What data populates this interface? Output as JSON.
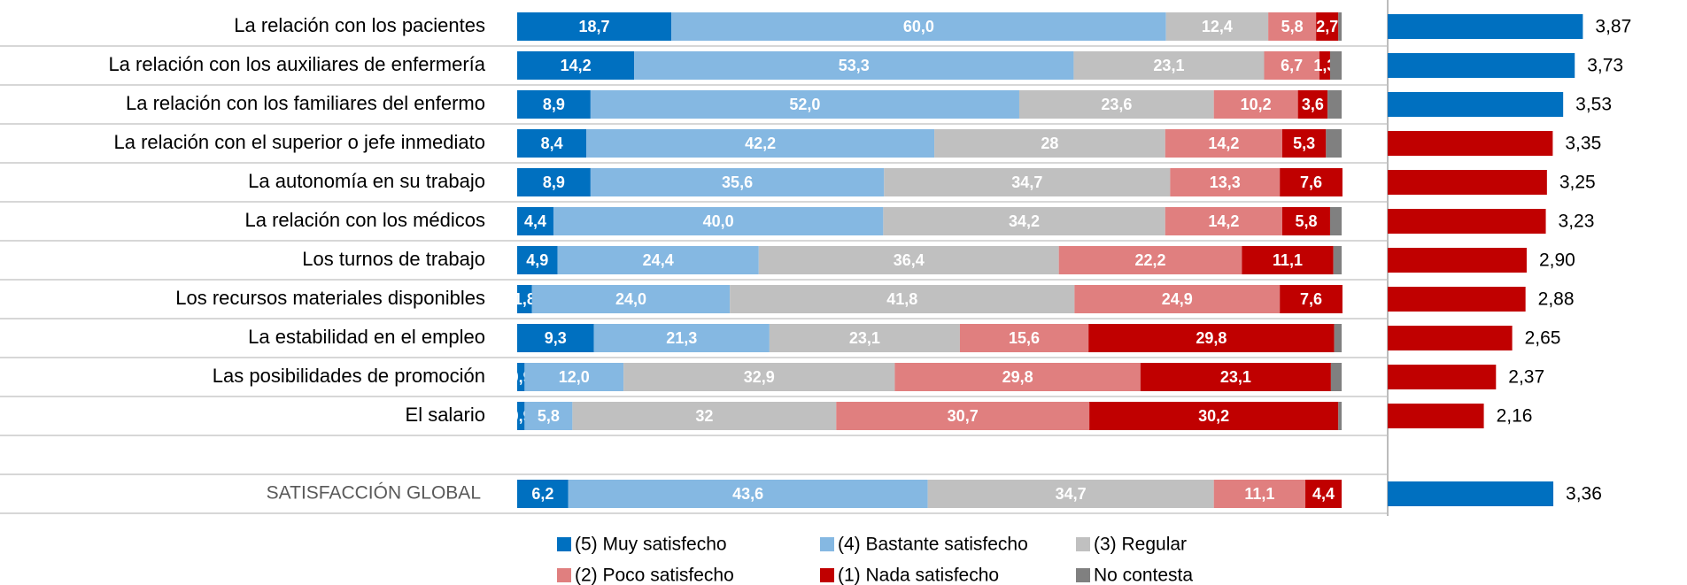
{
  "chart_data": [
    {
      "type": "stacked_barh",
      "categories": [
        "La relación con los pacientes",
        "La relación con los auxiliares de enfermería",
        "La relación con los familiares del enfermo",
        "La relación con el superior o jefe inmediato",
        "La autonomía en su trabajo",
        "La relación con los médicos",
        "Los turnos de trabajo",
        "Los recursos materiales disponibles",
        "La estabilidad en el empleo",
        "Las posibilidades de promoción",
        "El salario",
        null,
        "SATISFACCIÓN GLOBAL"
      ],
      "xlim": [
        0,
        100
      ],
      "legend": "bottom",
      "series": [
        {
          "name": "(5) Muy satisfecho",
          "color": "#0070c0",
          "values": [
            18.7,
            14.2,
            8.9,
            8.4,
            8.9,
            4.4,
            4.9,
            1.8,
            9.3,
            0.9,
            0.9,
            null,
            6.2
          ],
          "value_labels": [
            "18,7",
            "14,2",
            "8,9",
            "8,4",
            "8,9",
            "4,4",
            "4,9",
            "1,8",
            "9,3",
            "0,9",
            "0,9",
            null,
            "6,2"
          ]
        },
        {
          "name": "(4) Bastante satisfecho",
          "color": "#85b8e2",
          "values": [
            60.0,
            53.3,
            52.0,
            42.2,
            35.6,
            40.0,
            24.4,
            24.0,
            21.3,
            12.0,
            5.8,
            null,
            43.6
          ],
          "value_labels": [
            "60,0",
            "53,3",
            "52,0",
            "42,2",
            "35,6",
            "40,0",
            "24,4",
            "24,0",
            "21,3",
            "12,0",
            "5,8",
            null,
            "43,6"
          ]
        },
        {
          "name": "(3) Regular",
          "color": "#c0c0c0",
          "values": [
            12.4,
            23.1,
            23.6,
            28,
            34.7,
            34.2,
            36.4,
            41.8,
            23.1,
            32.9,
            32,
            null,
            34.7
          ],
          "value_labels": [
            "12,4",
            "23,1",
            "23,6",
            "28",
            "34,7",
            "34,2",
            "36,4",
            "41,8",
            "23,1",
            "32,9",
            "32",
            null,
            "34,7"
          ]
        },
        {
          "name": "(2) Poco satisfecho",
          "color": "#e07f7f",
          "values": [
            5.8,
            6.7,
            10.2,
            14.2,
            13.3,
            14.2,
            22.2,
            24.9,
            15.6,
            29.8,
            30.7,
            null,
            11.1
          ],
          "value_labels": [
            "5,8",
            "6,7",
            "10,2",
            "14,2",
            "13,3",
            "14,2",
            "22,2",
            "24,9",
            "15,6",
            "29,8",
            "30,7",
            null,
            "11,1"
          ]
        },
        {
          "name": "(1) Nada satisfecho",
          "color": "#c00000",
          "values": [
            2.7,
            1.3,
            3.6,
            5.3,
            7.6,
            5.8,
            11.1,
            7.6,
            29.8,
            23.1,
            30.2,
            null,
            4.4
          ],
          "value_labels": [
            "2,7",
            "1,3",
            "3,6",
            "5,3",
            "7,6",
            "5,8",
            "11,1",
            "7,6",
            "29,8",
            "23,1",
            "30,2",
            null,
            "4,4"
          ]
        },
        {
          "name": "No contesta",
          "color": "#808080",
          "values": [
            0.4,
            1.4,
            1.7,
            1.9,
            0,
            1.4,
            1.0,
            0,
            0.9,
            1.3,
            0.4,
            null,
            0
          ]
        }
      ]
    },
    {
      "type": "barh",
      "xlim": [
        0.5,
        5.5
      ],
      "values": [
        3.87,
        3.73,
        3.53,
        3.35,
        3.25,
        3.23,
        2.9,
        2.88,
        2.65,
        2.37,
        2.16,
        null,
        3.36
      ],
      "value_labels": [
        "3,87",
        "3,73",
        "3,53",
        "3,35",
        "3,25",
        "3,23",
        "2,90",
        "2,88",
        "2,65",
        "2,37",
        "2,16",
        null,
        "3,36"
      ],
      "colors": [
        "#0070c0",
        "#0070c0",
        "#0070c0",
        "#c00000",
        "#c00000",
        "#c00000",
        "#c00000",
        "#c00000",
        "#c00000",
        "#c00000",
        "#c00000",
        null,
        "#0070c0"
      ]
    }
  ]
}
